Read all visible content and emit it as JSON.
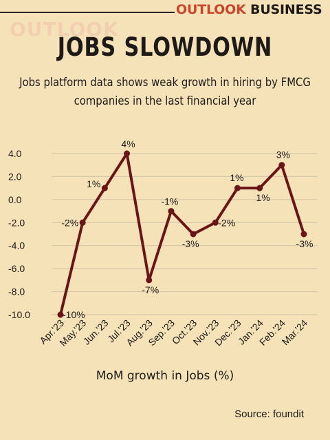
{
  "header": {
    "brand_part1": "OUTLOOK",
    "brand_part2": "BUSINESS",
    "watermark": "OUTLOOK"
  },
  "colors": {
    "background": "#f6e2b8",
    "line": "#6b1616",
    "brand_accent": "#c9472a",
    "grid": "#cfc3aa"
  },
  "chart_data": {
    "type": "line",
    "title": "JOBS SLOWDOWN",
    "subtitle": "Jobs platform data shows weak growth in hiring by FMCG companies in the last financial year",
    "xlabel": "MoM growth in Jobs (%)",
    "ylabel": "",
    "categories": [
      "Apr.'23",
      "May.'23",
      "Jun.'23",
      "Jul.'23",
      "Aug.'23",
      "Sep.'23",
      "Oct.'23",
      "Nov.'23",
      "Dec.'23",
      "Jan.'24",
      "Feb.'24",
      "Mar.'24"
    ],
    "series": [
      {
        "values": [
          -10,
          -2,
          1,
          4,
          -7,
          -1,
          -3,
          -2,
          1,
          1,
          3,
          -3
        ]
      }
    ],
    "data_labels": [
      "-10%",
      "-2%",
      "1%",
      "4%",
      "-7%",
      "-1%",
      "-3%",
      "-2%",
      "1%",
      "1%",
      "3%",
      "-3%"
    ],
    "yticks": [
      "4.0",
      "2.0",
      "0.0",
      "-2.0",
      "-4.0",
      "-6.0",
      "-8.0",
      "-10.0"
    ],
    "ylim": [
      -10,
      4
    ],
    "grid": true,
    "source": "Source: foundit"
  }
}
